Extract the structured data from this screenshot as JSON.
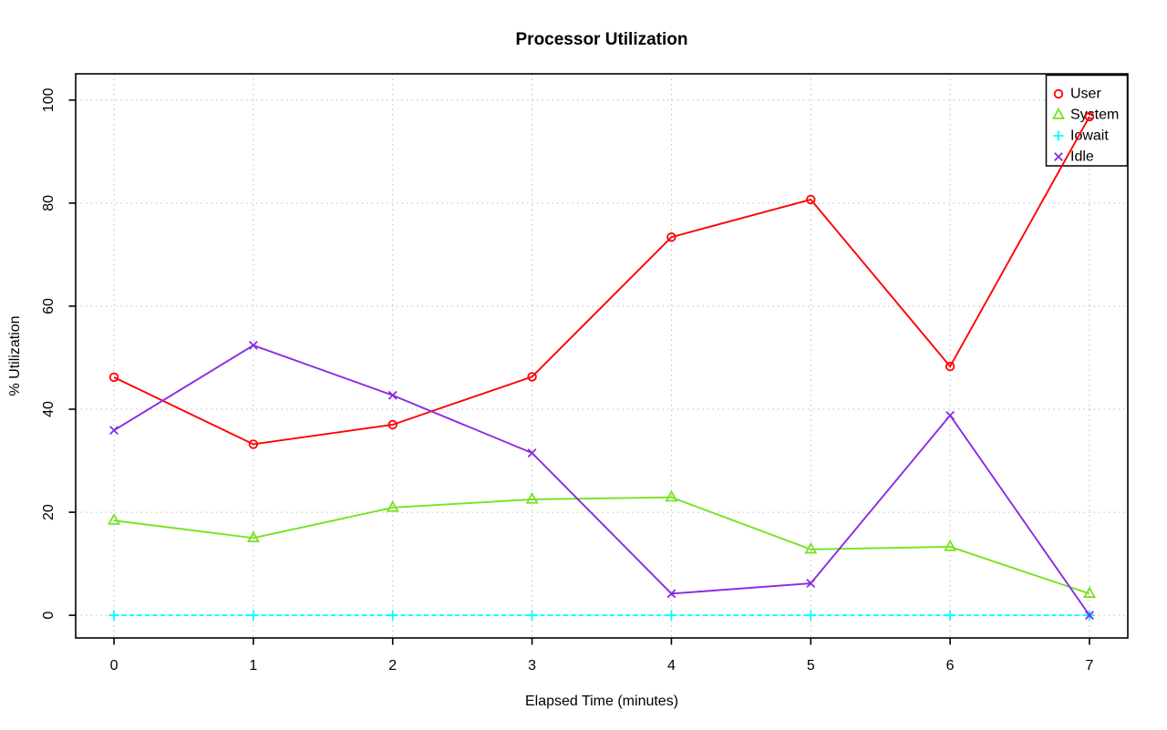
{
  "page": {
    "title": "Processor Utilization"
  },
  "chart_data": {
    "type": "line",
    "title": "Processor Utilization",
    "xlabel": "Elapsed Time (minutes)",
    "ylabel": "% Utilization",
    "x": [
      0,
      1,
      2,
      3,
      4,
      5,
      6,
      7
    ],
    "xticks": [
      0,
      1,
      2,
      3,
      4,
      5,
      6,
      7
    ],
    "yticks": [
      0,
      20,
      40,
      60,
      80,
      100
    ],
    "xlim": [
      -0.275,
      7.275
    ],
    "ylim": [
      -4.4,
      105.1
    ],
    "grid": true,
    "grid_style": "dotted",
    "legend_position": "top-right",
    "series": [
      {
        "name": "User",
        "color": "#FF0000",
        "marker": "circle",
        "line_style": "solid",
        "values": [
          46.2,
          33.2,
          37.0,
          46.3,
          73.4,
          80.7,
          48.3,
          96.8
        ]
      },
      {
        "name": "System",
        "color": "#77E221",
        "marker": "triangle",
        "line_style": "solid",
        "values": [
          18.4,
          15.0,
          20.9,
          22.5,
          22.9,
          12.8,
          13.3,
          4.2
        ]
      },
      {
        "name": "Iowait",
        "color": "#00FFFF",
        "marker": "plus",
        "line_style": "dashed",
        "values": [
          0,
          0,
          0,
          0,
          0,
          0,
          0,
          0
        ]
      },
      {
        "name": "Idle",
        "color": "#8A2BE2",
        "marker": "x",
        "line_style": "solid",
        "values": [
          35.9,
          52.4,
          42.7,
          31.5,
          4.2,
          6.2,
          38.8,
          0
        ]
      }
    ],
    "colors": {
      "axis": "#000000",
      "grid": "#BEBEBE",
      "background": "#FFFFFF",
      "legend_border": "#000000"
    }
  }
}
